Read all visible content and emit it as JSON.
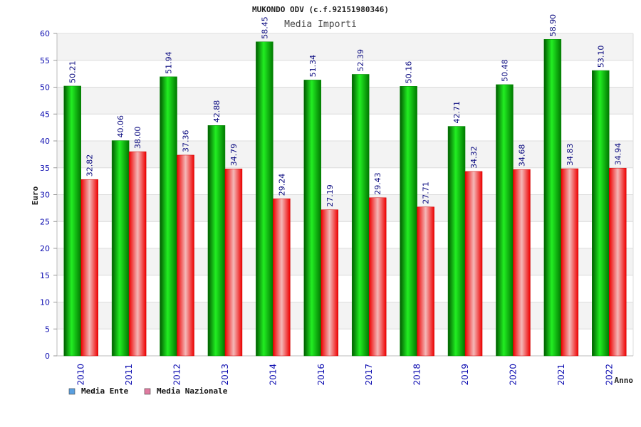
{
  "chart_data": {
    "type": "bar",
    "title": "MUKONDO ODV (c.f.92151980346)",
    "subtitle": "Media Importi",
    "xlabel": "Anno",
    "ylabel": "Euro",
    "ylim": [
      0,
      60
    ],
    "yticks": [
      0,
      5,
      10,
      15,
      20,
      25,
      30,
      35,
      40,
      45,
      50,
      55,
      60
    ],
    "grid": true,
    "legend_position": "bottom-left",
    "categories": [
      "2010",
      "2011",
      "2012",
      "2013",
      "2014",
      "2016",
      "2017",
      "2018",
      "2019",
      "2020",
      "2021",
      "2022"
    ],
    "series": [
      {
        "name": "Media Ente",
        "color": "#00b000",
        "legend_color": "#5aa0e0",
        "values": [
          50.21,
          40.06,
          51.94,
          42.88,
          58.45,
          51.34,
          52.39,
          50.16,
          42.71,
          50.48,
          58.9,
          53.1
        ],
        "labels": [
          "50.21",
          "40.06",
          "51.94",
          "42.88",
          "58.45",
          "51.34",
          "52.39",
          "50.16",
          "42.71",
          "50.48",
          "58.90",
          "53.10"
        ]
      },
      {
        "name": "Media Nazionale",
        "color": "#ee0000",
        "legend_color": "#e07aa0",
        "values": [
          32.82,
          38.0,
          37.36,
          34.79,
          29.24,
          27.19,
          29.43,
          27.71,
          34.32,
          34.68,
          34.83,
          34.94
        ],
        "labels": [
          "32.82",
          "38.00",
          "37.36",
          "34.79",
          "29.24",
          "27.19",
          "29.43",
          "27.71",
          "34.32",
          "34.68",
          "34.83",
          "34.94"
        ]
      }
    ]
  }
}
